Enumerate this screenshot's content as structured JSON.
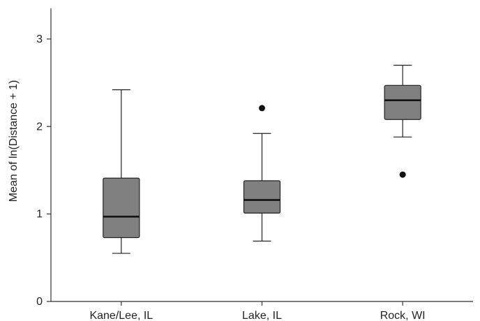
{
  "chart_data": {
    "type": "box",
    "title": "",
    "xlabel": "",
    "ylabel": "Mean of ln(Distance + 1)",
    "ylim": [
      0,
      3.35
    ],
    "yticks": [
      0,
      1,
      2,
      3
    ],
    "grid": false,
    "box_color": "#808080",
    "categories": [
      "Kane/Lee, IL",
      "Lake, IL",
      "Rock, WI"
    ],
    "boxes": [
      {
        "category": "Kane/Lee, IL",
        "whisker_low": 0.55,
        "q1": 0.73,
        "median": 0.97,
        "q3": 1.41,
        "whisker_high": 2.42,
        "outliers": []
      },
      {
        "category": "Lake, IL",
        "whisker_low": 0.69,
        "q1": 1.01,
        "median": 1.16,
        "q3": 1.38,
        "whisker_high": 1.92,
        "outliers": [
          2.21
        ]
      },
      {
        "category": "Rock, WI",
        "whisker_low": 1.88,
        "q1": 2.08,
        "median": 2.3,
        "q3": 2.47,
        "whisker_high": 2.7,
        "outliers": [
          1.45
        ]
      }
    ]
  }
}
